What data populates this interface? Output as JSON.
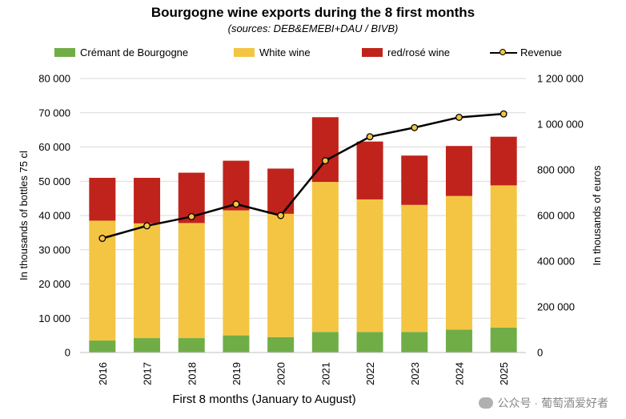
{
  "chart_data": {
    "type": "bar",
    "stacked": true,
    "title": "Bourgogne wine exports during the 8 first months",
    "subtitle": "(sources: DEB&EMEBI+DAU / BIVB)",
    "xlabel": "First 8 months (January to August)",
    "ylabel": "In thousands of bottles  75 cl",
    "y2label": "In thousands of euros",
    "categories": [
      "2016",
      "2017",
      "2018",
      "2019",
      "2020",
      "2021",
      "2022",
      "2023",
      "2024",
      "2025"
    ],
    "series": [
      {
        "name": "Crémant de Bourgogne",
        "color": "#70ad47",
        "values": [
          3500,
          4200,
          4200,
          5000,
          4500,
          6000,
          6000,
          6000,
          6700,
          7300
        ]
      },
      {
        "name": "White wine",
        "color": "#f4c542",
        "values": [
          35000,
          33500,
          33600,
          36500,
          36000,
          43800,
          38700,
          37100,
          39000,
          41500
        ]
      },
      {
        "name": "red/rosé wine",
        "color": "#c0231b",
        "values": [
          12500,
          13300,
          14700,
          14500,
          13200,
          18900,
          16900,
          14400,
          14600,
          14200
        ]
      }
    ],
    "line_series": {
      "name": "Revenue",
      "axis": "right",
      "color": "#000000",
      "marker_color": "#f4c542",
      "values": [
        500000,
        555000,
        595000,
        650000,
        600000,
        840000,
        945000,
        985000,
        1030000,
        1045000
      ]
    },
    "ylim": [
      0,
      80000
    ],
    "yticks": [
      "0",
      "10 000",
      "20 000",
      "30 000",
      "40 000",
      "50 000",
      "60 000",
      "70 000",
      "80 000"
    ],
    "y2lim": [
      0,
      1200000
    ],
    "y2ticks": [
      "0",
      "200 000",
      "400 000",
      "600 000",
      "800 000",
      "1 000 000",
      "1 200 000"
    ],
    "grid": true,
    "legend": "top"
  },
  "watermark": "公众号 · 葡萄酒爱好者"
}
